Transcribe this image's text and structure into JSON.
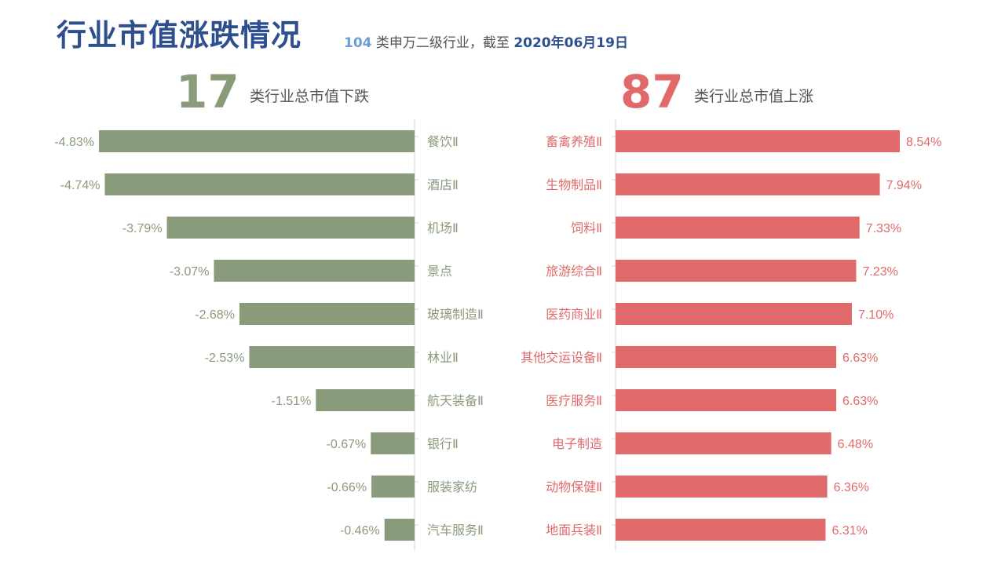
{
  "header": {
    "title": "行业市值涨跌情况",
    "subtitle_count": "104",
    "subtitle_text": " 类申万二级行业，截至 ",
    "subtitle_date": "2020年06月19日"
  },
  "summary": {
    "down_count": "17",
    "down_label": "类行业总市值下跌",
    "up_count": "87",
    "up_label": "类行业总市值上涨"
  },
  "colors": {
    "title": "#2d4f8e",
    "down": "#8a9b7c",
    "up": "#e06a6a",
    "axis": "#c8d7ea"
  },
  "chart_data": [
    {
      "type": "bar",
      "orientation": "horizontal",
      "categories": [
        "餐饮Ⅱ",
        "酒店Ⅱ",
        "机场Ⅱ",
        "景点",
        "玻璃制造Ⅱ",
        "林业Ⅱ",
        "航天装备Ⅱ",
        "银行Ⅱ",
        "服装家纺",
        "汽车服务Ⅱ"
      ],
      "values": [
        -4.83,
        -4.74,
        -3.79,
        -3.07,
        -2.68,
        -2.53,
        -1.51,
        -0.67,
        -0.66,
        -0.46
      ],
      "value_labels": [
        "-4.83%",
        "-4.74%",
        "-3.79%",
        "-3.07%",
        "-2.68%",
        "-2.53%",
        "-1.51%",
        "-0.67%",
        "-0.66%",
        "-0.46%"
      ],
      "xlim": [
        -4.83,
        0
      ],
      "color": "#8a9b7c"
    },
    {
      "type": "bar",
      "orientation": "horizontal",
      "categories": [
        "畜禽养殖Ⅱ",
        "生物制品Ⅱ",
        "饲料Ⅱ",
        "旅游综合Ⅱ",
        "医药商业Ⅱ",
        "其他交运设备Ⅱ",
        "医疗服务Ⅱ",
        "电子制造",
        "动物保健Ⅱ",
        "地面兵装Ⅱ"
      ],
      "values": [
        8.54,
        7.94,
        7.33,
        7.23,
        7.1,
        6.63,
        6.63,
        6.48,
        6.36,
        6.31
      ],
      "value_labels": [
        "8.54%",
        "7.94%",
        "7.33%",
        "7.23%",
        "7.10%",
        "6.63%",
        "6.63%",
        "6.48%",
        "6.36%",
        "6.31%"
      ],
      "xlim": [
        0,
        8.54
      ],
      "color": "#e06a6a"
    }
  ]
}
